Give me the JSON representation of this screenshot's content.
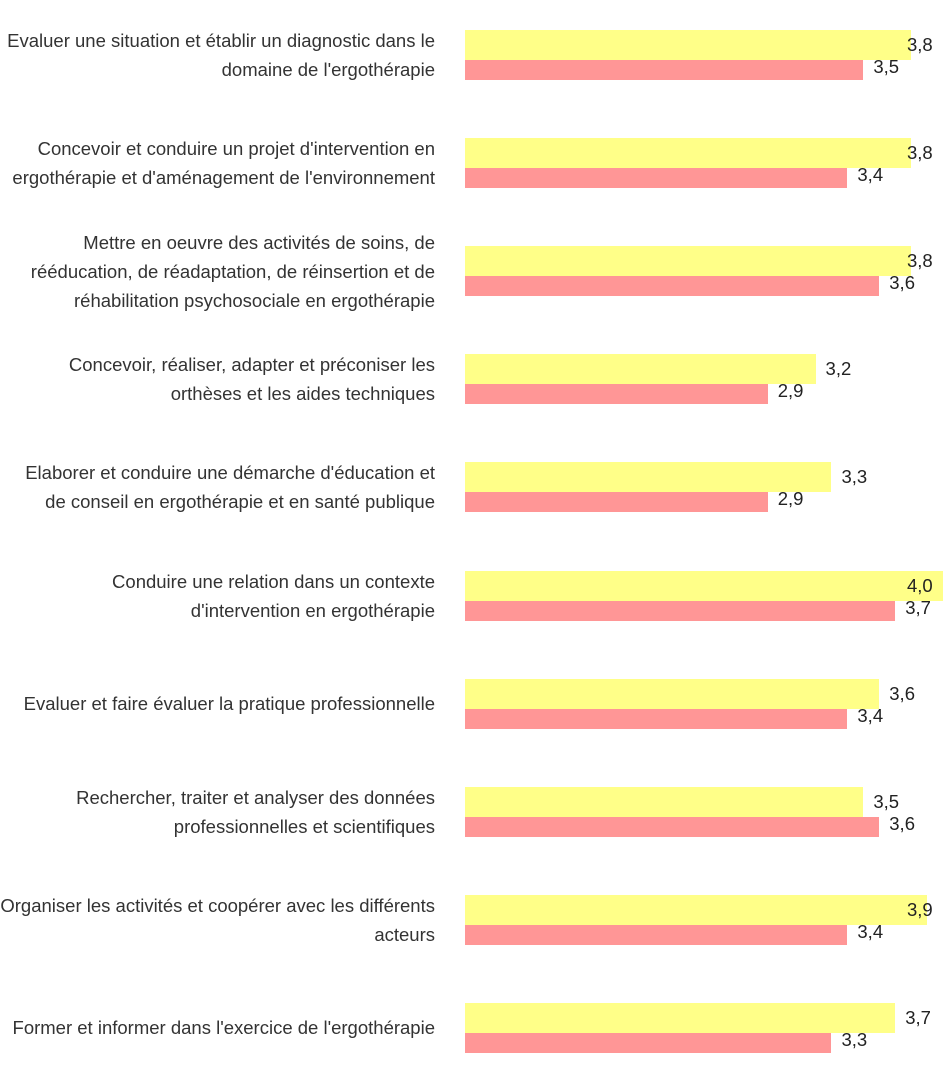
{
  "chart_data": {
    "type": "bar",
    "orientation": "horizontal",
    "categories": [
      "Evaluer une situation et établir un diagnostic dans le domaine de l'ergothérapie",
      "Concevoir et conduire un projet d'intervention en ergothérapie et d'aménagement de l'environnement",
      "Mettre en oeuvre des activités de soins, de rééducation, de réadaptation, de réinsertion et de réhabilitation psychosociale en ergothérapie",
      "Concevoir, réaliser, adapter et préconiser les orthèses et les aides techniques",
      "Elaborer et conduire une démarche d'éducation et de conseil en ergothérapie et en santé publique",
      "Conduire une relation dans un contexte d'intervention en ergothérapie",
      "Evaluer et faire évaluer la pratique professionnelle",
      "Rechercher, traiter et analyser des données professionnelles et scientifiques",
      "Organiser les activités et coopérer avec les différents acteurs",
      "Former et informer dans l'exercice de l'ergothérapie"
    ],
    "series": [
      {
        "color": "#ffff88",
        "values": [
          3.8,
          3.8,
          3.8,
          3.2,
          3.3,
          4.0,
          3.6,
          3.5,
          3.9,
          3.7
        ],
        "value_labels": [
          "3,8",
          "3,8",
          "3,8",
          "3,2",
          "3,3",
          "4,0",
          "3,6",
          "3,5",
          "3,9",
          "3,7"
        ]
      },
      {
        "color": "#ff9696",
        "values": [
          3.5,
          3.4,
          3.6,
          2.9,
          2.9,
          3.7,
          3.4,
          3.6,
          3.4,
          3.3
        ],
        "value_labels": [
          "3,5",
          "3,4",
          "3,6",
          "2,9",
          "2,9",
          "3,7",
          "3,4",
          "3,6",
          "3,4",
          "3,3"
        ]
      }
    ],
    "xlim": [
      1,
      4
    ]
  }
}
